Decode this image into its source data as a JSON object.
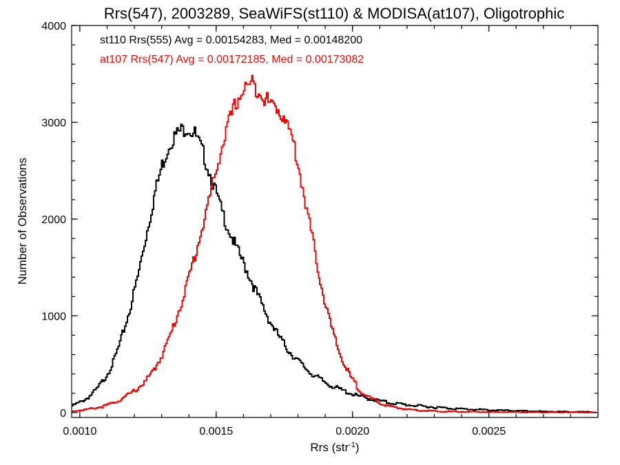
{
  "chart_data": {
    "type": "line",
    "title": "Rrs(547), 2003289, SeaWiFS(st110) & MODISA(at107), Oligotrophic",
    "xlabel_main": "Rrs (str",
    "xlabel_sup": "-1",
    "xlabel_end": ")",
    "ylabel": "Number of Observations",
    "xlim": [
      0.00097,
      0.0029
    ],
    "ylim": [
      -50,
      4000
    ],
    "x_ticks": [
      0.001,
      0.0015,
      0.002,
      0.0025
    ],
    "x_tick_labels": [
      "0.0010",
      "0.0015",
      "0.0020",
      "0.0025"
    ],
    "y_ticks": [
      0,
      1000,
      2000,
      3000,
      4000
    ],
    "y_tick_labels": [
      "0",
      "1000",
      "2000",
      "3000",
      "4000"
    ],
    "grid": false,
    "annotations": [
      {
        "text": "st110 Rrs(555) Avg = 0.00154283, Med = 0.00148200",
        "color": "#000000"
      },
      {
        "text": "at107 Rrs(547) Avg = 0.00172185, Med = 0.00173082",
        "color": "#ff0000"
      }
    ],
    "series": [
      {
        "color": "#000000",
        "x": [
          0.00097,
          0.001,
          0.00103,
          0.00106,
          0.00109,
          0.00112,
          0.00115,
          0.00118,
          0.00121,
          0.00124,
          0.00127,
          0.0013,
          0.00133,
          0.00136,
          0.00139,
          0.00142,
          0.00145,
          0.00148,
          0.00151,
          0.00154,
          0.00157,
          0.0016,
          0.00163,
          0.00166,
          0.00169,
          0.00172,
          0.00175,
          0.00178,
          0.00181,
          0.00184,
          0.00187,
          0.0019,
          0.00193,
          0.00196,
          0.00199,
          0.00202,
          0.00205,
          0.00208,
          0.00211,
          0.00214,
          0.00217,
          0.0022,
          0.00223,
          0.00226,
          0.00229,
          0.00232,
          0.00235,
          0.00238,
          0.00241,
          0.00244,
          0.00247,
          0.0025,
          0.00253,
          0.00256,
          0.00259,
          0.00262,
          0.00265,
          0.00268,
          0.00271,
          0.00274,
          0.00277,
          0.0028,
          0.00283,
          0.00286,
          0.00289
        ],
        "y": [
          70,
          110,
          160,
          240,
          360,
          520,
          760,
          1050,
          1400,
          1820,
          2230,
          2560,
          2800,
          2900,
          2950,
          2880,
          2680,
          2420,
          2150,
          1920,
          1710,
          1530,
          1340,
          1150,
          970,
          820,
          690,
          590,
          500,
          420,
          360,
          310,
          265,
          230,
          200,
          170,
          150,
          130,
          115,
          100,
          90,
          80,
          72,
          65,
          58,
          52,
          46,
          41,
          37,
          33,
          30,
          27,
          24,
          21,
          19,
          17,
          15,
          13,
          11,
          10,
          9,
          8,
          7,
          6,
          5
        ]
      },
      {
        "color": "#ff0000",
        "x": [
          0.00097,
          0.001,
          0.00103,
          0.00106,
          0.00109,
          0.00112,
          0.00115,
          0.00118,
          0.00121,
          0.00124,
          0.00127,
          0.0013,
          0.00133,
          0.00136,
          0.00139,
          0.00142,
          0.00145,
          0.00148,
          0.00151,
          0.00154,
          0.00157,
          0.0016,
          0.00163,
          0.00166,
          0.00169,
          0.00172,
          0.00175,
          0.00178,
          0.00181,
          0.00184,
          0.00187,
          0.0019,
          0.00193,
          0.00196,
          0.00199,
          0.00202,
          0.00205,
          0.00208,
          0.00211,
          0.00214,
          0.00217,
          0.0022,
          0.00223,
          0.00226,
          0.00229,
          0.00232,
          0.00235,
          0.00238,
          0.00241,
          0.00244,
          0.00247,
          0.0025,
          0.00253,
          0.00256,
          0.00259,
          0.00262,
          0.00265,
          0.00268,
          0.00271,
          0.00274,
          0.00277,
          0.0028,
          0.00283,
          0.00286,
          0.00289
        ],
        "y": [
          15,
          25,
          35,
          50,
          70,
          100,
          140,
          190,
          250,
          330,
          440,
          600,
          800,
          1050,
          1320,
          1620,
          1950,
          2300,
          2650,
          2950,
          3200,
          3350,
          3400,
          3320,
          3200,
          3150,
          3050,
          2800,
          2400,
          1950,
          1500,
          1100,
          780,
          540,
          370,
          250,
          170,
          120,
          85,
          60,
          45,
          35,
          27,
          21,
          17,
          14,
          12,
          10,
          9,
          8,
          7,
          6,
          6,
          5,
          5,
          4,
          4,
          4,
          3,
          3,
          3,
          3,
          2,
          2,
          2
        ]
      }
    ]
  }
}
